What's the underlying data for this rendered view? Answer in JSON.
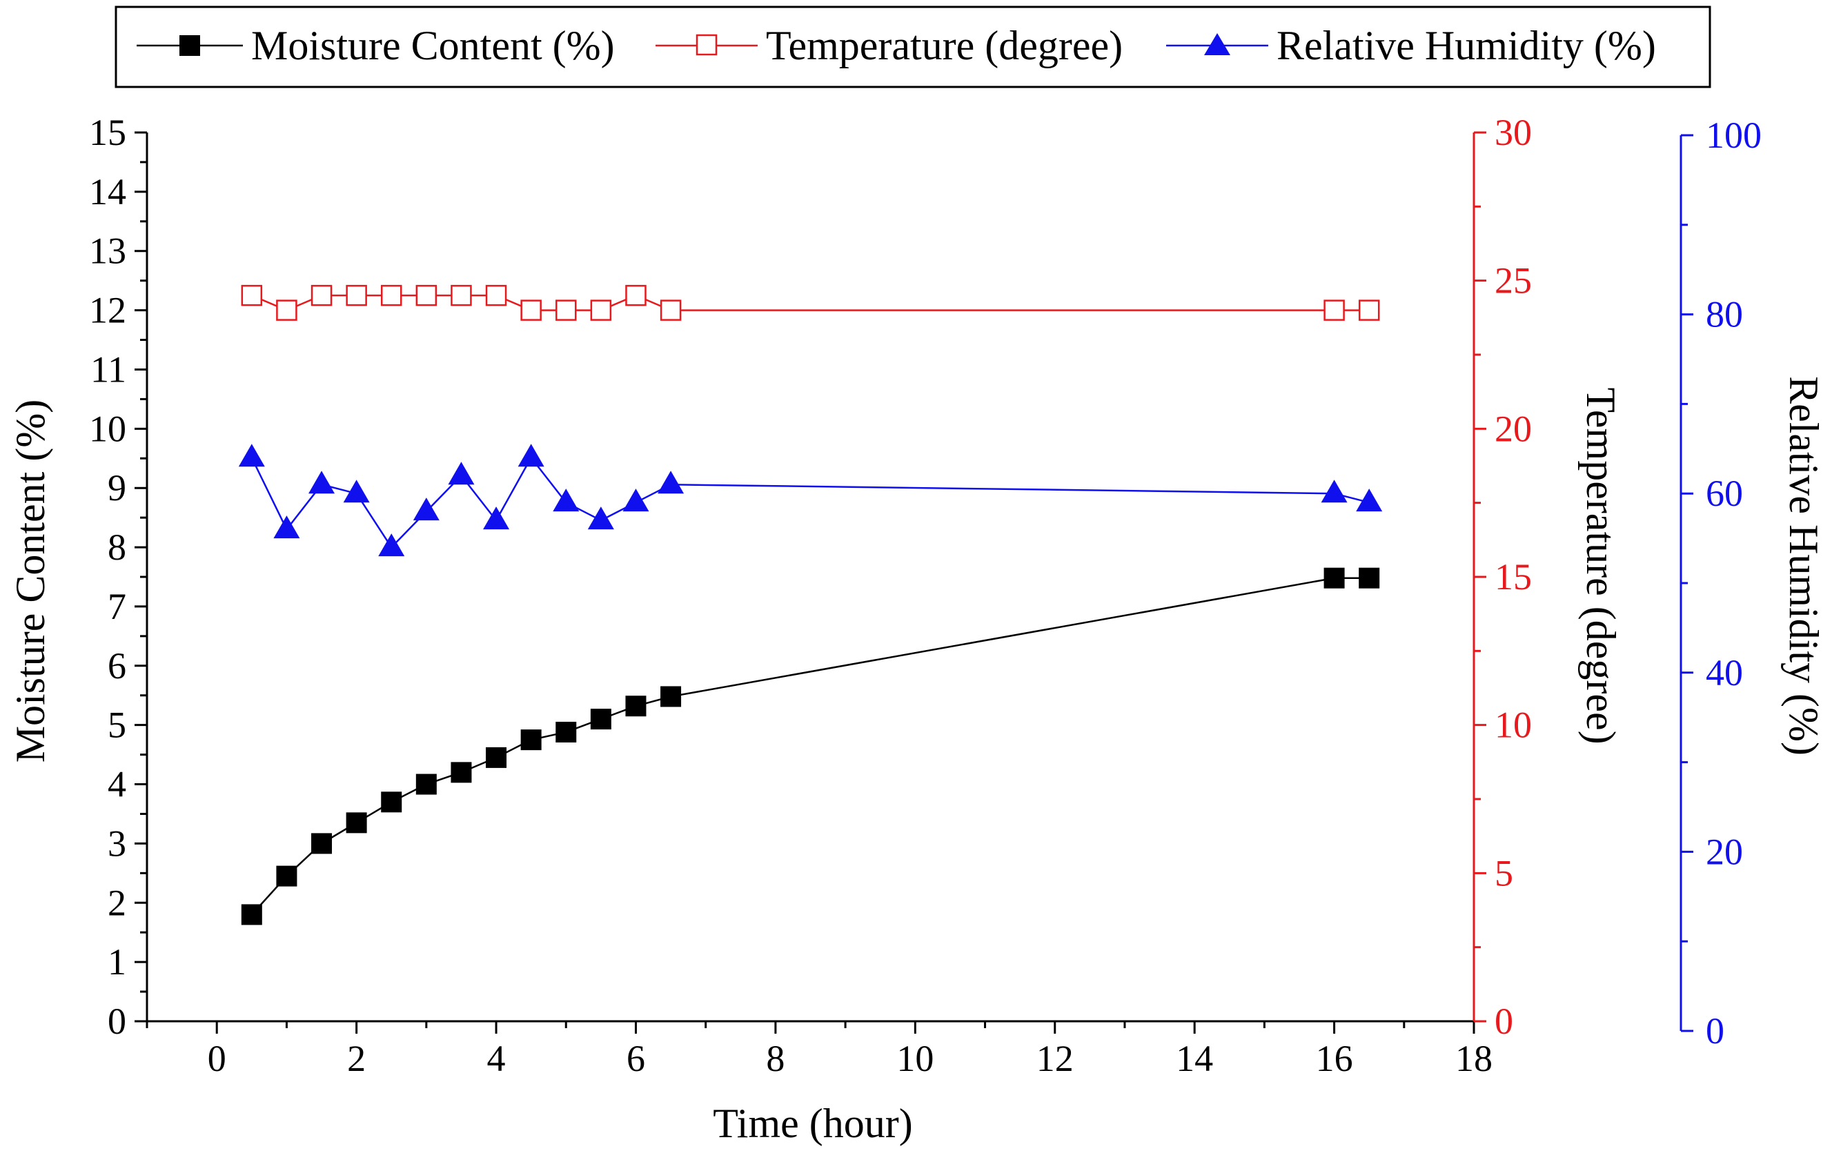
{
  "chart_data": {
    "type": "line",
    "title": "",
    "xlabel": "Time (hour)",
    "xlim": [
      -1,
      18
    ],
    "xticks": [
      0,
      2,
      4,
      6,
      8,
      10,
      12,
      14,
      16,
      18
    ],
    "x": [
      0.5,
      1,
      1.5,
      2,
      2.5,
      3,
      3.5,
      4,
      4.5,
      5,
      5.5,
      6,
      6.5,
      16,
      16.5
    ],
    "axes": {
      "left": {
        "label": "Moisture Content (%)",
        "ylim": [
          0,
          15
        ],
        "ticks": [
          0,
          1,
          2,
          3,
          4,
          5,
          6,
          7,
          8,
          9,
          10,
          11,
          12,
          13,
          14,
          15
        ],
        "color": "#000000"
      },
      "right1": {
        "label": "Temperature (degree)",
        "ylim": [
          0,
          30
        ],
        "ticks": [
          0,
          5,
          10,
          15,
          20,
          25,
          30
        ],
        "color": "#e8191c"
      },
      "right2": {
        "label": "Relative Humidity (%)",
        "ylim": [
          0,
          100
        ],
        "ticks": [
          0,
          20,
          40,
          60,
          80,
          100
        ],
        "color": "#1010ee"
      }
    },
    "series": [
      {
        "name": "Moisture Content (%)",
        "axis": "left",
        "color": "#000000",
        "marker": "filled-square",
        "values": [
          1.8,
          2.45,
          3.0,
          3.35,
          3.7,
          4.0,
          4.2,
          4.45,
          4.75,
          4.88,
          5.1,
          5.32,
          5.48,
          7.48,
          7.48
        ]
      },
      {
        "name": "Temperature (degree)",
        "axis": "right1",
        "color": "#e8191c",
        "marker": "open-square",
        "values": [
          24.5,
          24.0,
          24.5,
          24.5,
          24.5,
          24.5,
          24.5,
          24.5,
          24.0,
          24.0,
          24.0,
          24.5,
          24.0,
          24.0,
          24.0
        ]
      },
      {
        "name": "Relative Humidity (%)",
        "axis": "right2",
        "color": "#1010ee",
        "marker": "filled-triangle",
        "values": [
          64,
          56,
          61,
          60,
          54,
          58,
          62,
          57,
          64,
          59,
          57,
          59,
          61,
          60,
          59
        ]
      }
    ],
    "legend_position": "top"
  }
}
